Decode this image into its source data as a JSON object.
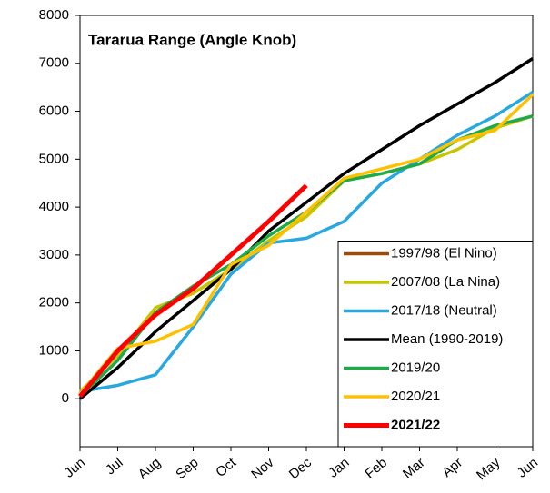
{
  "chart_data": {
    "type": "line",
    "title": "Tararua Range (Angle Knob)",
    "categories": [
      "Jun",
      "Jul",
      "Aug",
      "Sep",
      "Oct",
      "Nov",
      "Dec",
      "Jan",
      "Feb",
      "Mar",
      "Apr",
      "May",
      "Jun"
    ],
    "ylim": [
      -1000,
      8000
    ],
    "yticks": [
      0,
      1000,
      2000,
      3000,
      4000,
      5000,
      6000,
      7000,
      8000
    ],
    "grid": false,
    "legend": "lower right",
    "series": [
      {
        "name": "1997/98 (El Nino)",
        "color": "#9c4a0e",
        "values": [
          null,
          null,
          null,
          null,
          null,
          null,
          null,
          null,
          null,
          null,
          null,
          null,
          null
        ]
      },
      {
        "name": "2007/08 (La Nina)",
        "color": "#c8c400",
        "values": [
          150,
          900,
          1900,
          2200,
          2700,
          3300,
          3800,
          4550,
          4700,
          4900,
          5200,
          5650,
          5900
        ]
      },
      {
        "name": "2017/18 (Neutral)",
        "color": "#29a8e0",
        "values": [
          150,
          280,
          500,
          1500,
          2600,
          3250,
          3350,
          3700,
          4500,
          5000,
          5500,
          5900,
          6400
        ]
      },
      {
        "name": "Mean (1990-2019)",
        "color": "#000000",
        "values": [
          0,
          650,
          1400,
          2050,
          2700,
          3500,
          4100,
          4700,
          5200,
          5700,
          6150,
          6600,
          7100
        ]
      },
      {
        "name": "2019/20",
        "color": "#1faa4a",
        "values": [
          50,
          800,
          1800,
          2350,
          2800,
          3400,
          3900,
          4550,
          4700,
          4900,
          5400,
          5700,
          5900
        ]
      },
      {
        "name": "2020/21",
        "color": "#ffc000",
        "values": [
          100,
          1050,
          1200,
          1550,
          2800,
          3200,
          3900,
          4600,
          4800,
          5000,
          5400,
          5600,
          6350
        ]
      },
      {
        "name": "2021/22",
        "color": "#ff0000",
        "bold": true,
        "values": [
          50,
          1000,
          1750,
          2300,
          3000,
          3700,
          4450,
          null,
          null,
          null,
          null,
          null,
          null
        ]
      }
    ]
  }
}
